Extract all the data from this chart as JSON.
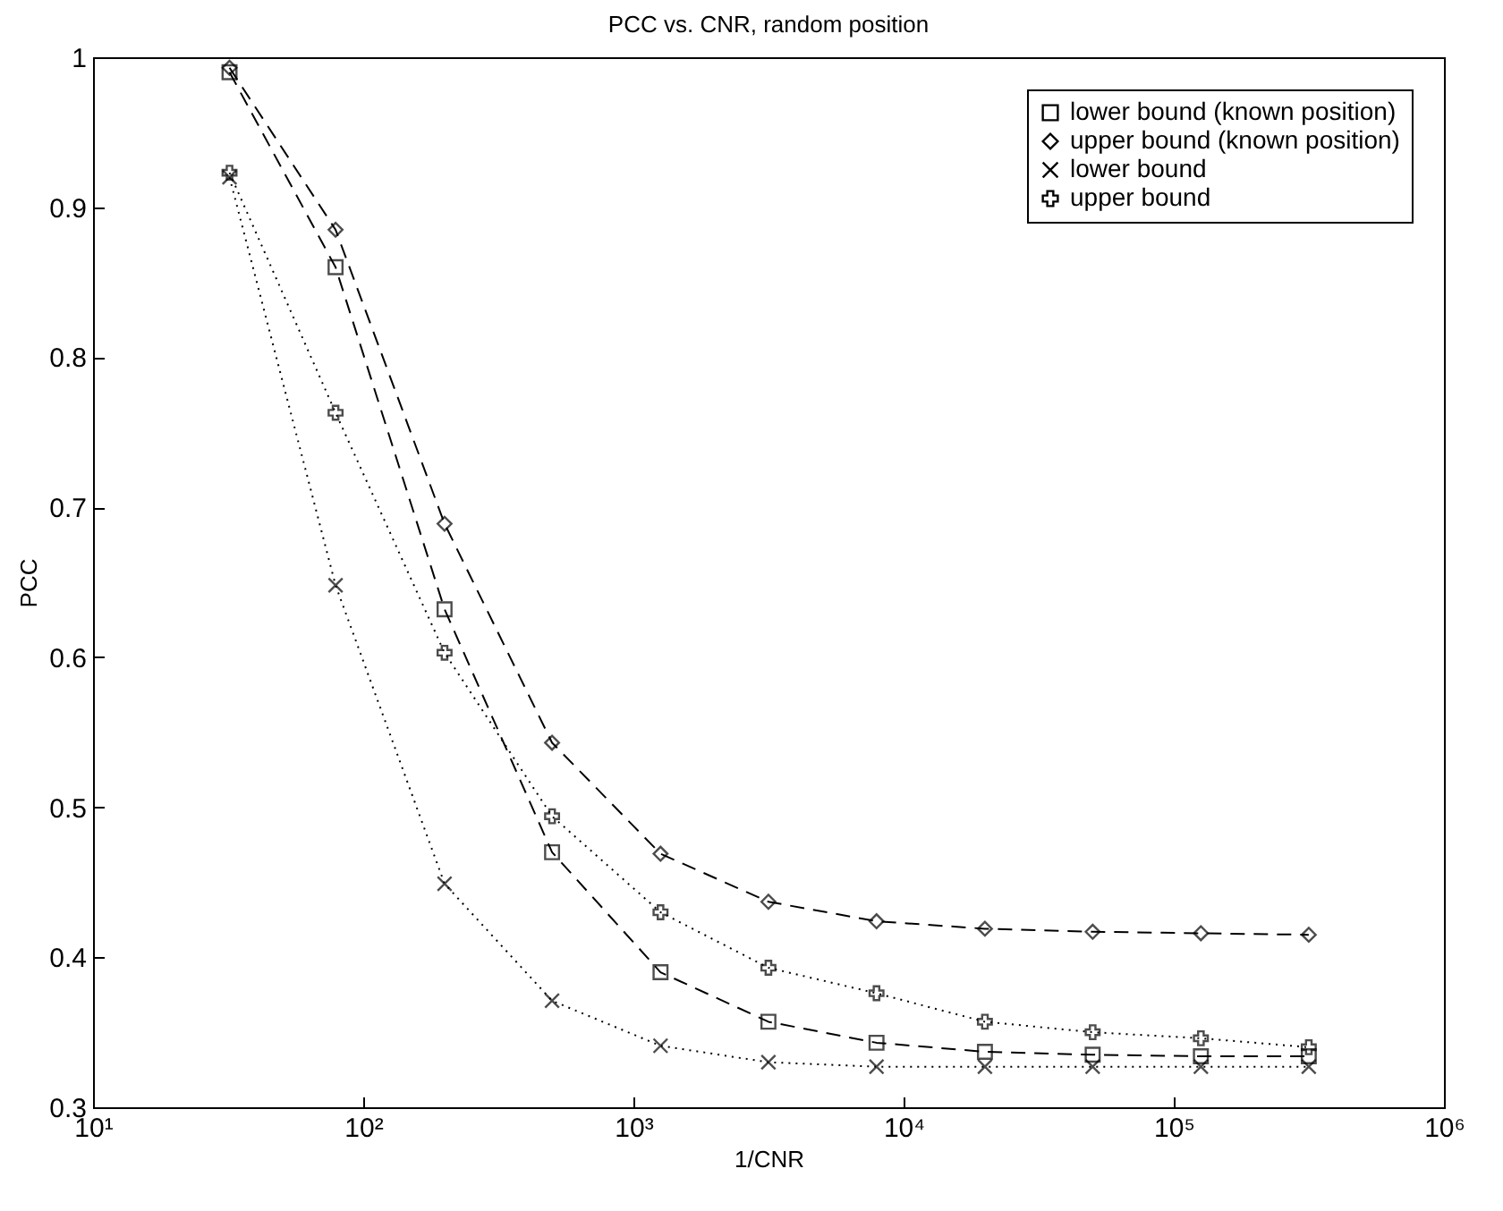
{
  "chart_data": {
    "type": "line",
    "title": "PCC vs. CNR, random position",
    "xlabel": "1/CNR",
    "ylabel": "PCC",
    "log": "x",
    "grid": false,
    "legend": "top right",
    "x": [
      32,
      79,
      200,
      500,
      1260,
      3160,
      7940,
      20000,
      50100,
      126000,
      316000
    ],
    "xlim": [
      10,
      1000000
    ],
    "xticks": [
      {
        "value": 10,
        "label": "10¹"
      },
      {
        "value": 100,
        "label": "10²"
      },
      {
        "value": 1000,
        "label": "10³"
      },
      {
        "value": 10000,
        "label": "10⁴"
      },
      {
        "value": 100000,
        "label": "10⁵"
      },
      {
        "value": 1000000,
        "label": "10⁶"
      }
    ],
    "ylim": [
      0.3,
      1
    ],
    "yticks": [
      0.3,
      0.4,
      0.5,
      0.6,
      0.7,
      0.8,
      0.9,
      1
    ],
    "series": [
      {
        "name": "lower bound (known position)",
        "color": "#000000",
        "marker": "square",
        "line_style": "dashed",
        "values": [
          0.99,
          0.86,
          0.632,
          0.47,
          0.39,
          0.357,
          0.343,
          0.337,
          0.335,
          0.334,
          0.334
        ]
      },
      {
        "name": "upper bound (known position)",
        "color": "#000000",
        "marker": "diamond",
        "line_style": "dashed",
        "values": [
          0.993,
          0.885,
          0.689,
          0.543,
          0.469,
          0.437,
          0.424,
          0.419,
          0.417,
          0.416,
          0.415
        ]
      },
      {
        "name": "lower bound",
        "color": "#000000",
        "marker": "x",
        "line_style": "dotted",
        "values": [
          0.92,
          0.648,
          0.449,
          0.371,
          0.341,
          0.33,
          0.327,
          0.327,
          0.327,
          0.327,
          0.327
        ]
      },
      {
        "name": "upper bound",
        "color": "#000000",
        "marker": "cross",
        "line_style": "dotted",
        "values": [
          0.923,
          0.763,
          0.603,
          0.494,
          0.43,
          0.393,
          0.376,
          0.357,
          0.35,
          0.346,
          0.34
        ]
      }
    ]
  }
}
